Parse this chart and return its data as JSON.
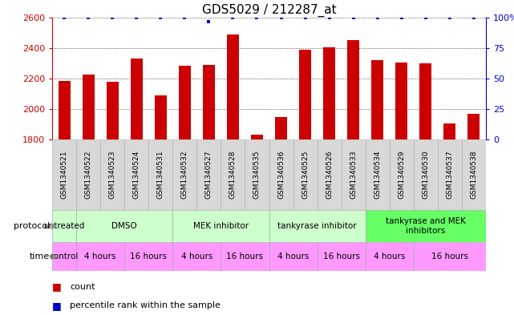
{
  "title": "GDS5029 / 212287_at",
  "samples": [
    "GSM1340521",
    "GSM1340522",
    "GSM1340523",
    "GSM1340524",
    "GSM1340531",
    "GSM1340532",
    "GSM1340527",
    "GSM1340528",
    "GSM1340535",
    "GSM1340536",
    "GSM1340525",
    "GSM1340526",
    "GSM1340533",
    "GSM1340534",
    "GSM1340529",
    "GSM1340530",
    "GSM1340537",
    "GSM1340538"
  ],
  "counts": [
    2185,
    2225,
    2180,
    2330,
    2090,
    2285,
    2290,
    2490,
    1830,
    1945,
    2390,
    2405,
    2455,
    2320,
    2305,
    2300,
    1905,
    1970
  ],
  "percentile": [
    100,
    100,
    100,
    100,
    100,
    100,
    97,
    100,
    100,
    100,
    100,
    100,
    100,
    100,
    100,
    100,
    100,
    100
  ],
  "ylim_left": [
    1800,
    2600
  ],
  "ylim_right": [
    0,
    100
  ],
  "yticks_left": [
    1800,
    2000,
    2200,
    2400,
    2600
  ],
  "yticks_right": [
    0,
    25,
    50,
    75,
    100
  ],
  "bar_color": "#cc0000",
  "dot_color": "#0000cc",
  "bar_width": 0.5,
  "bg_color": "#ffffff",
  "grid_color": "#000000",
  "tick_label_color_left": "#cc0000",
  "tick_label_color_right": "#0000cc",
  "title_fontsize": 11,
  "sample_bg_color": "#d8d8d8",
  "protocol_bg_color": "#ccffcc",
  "protocol_last_color": "#66ff66",
  "time_color": "#ff99ff",
  "protocol_groups": [
    {
      "label": "untreated",
      "start": 0,
      "end": 1
    },
    {
      "label": "DMSO",
      "start": 1,
      "end": 5
    },
    {
      "label": "MEK inhibitor",
      "start": 5,
      "end": 9
    },
    {
      "label": "tankyrase inhibitor",
      "start": 9,
      "end": 13
    },
    {
      "label": "tankyrase and MEK\ninhibitors",
      "start": 13,
      "end": 18
    }
  ],
  "time_groups": [
    {
      "label": "control",
      "start": 0,
      "end": 1
    },
    {
      "label": "4 hours",
      "start": 1,
      "end": 3
    },
    {
      "label": "16 hours",
      "start": 3,
      "end": 5
    },
    {
      "label": "4 hours",
      "start": 5,
      "end": 7
    },
    {
      "label": "16 hours",
      "start": 7,
      "end": 9
    },
    {
      "label": "4 hours",
      "start": 9,
      "end": 11
    },
    {
      "label": "16 hours",
      "start": 11,
      "end": 13
    },
    {
      "label": "4 hours",
      "start": 13,
      "end": 15
    },
    {
      "label": "16 hours",
      "start": 15,
      "end": 18
    }
  ]
}
